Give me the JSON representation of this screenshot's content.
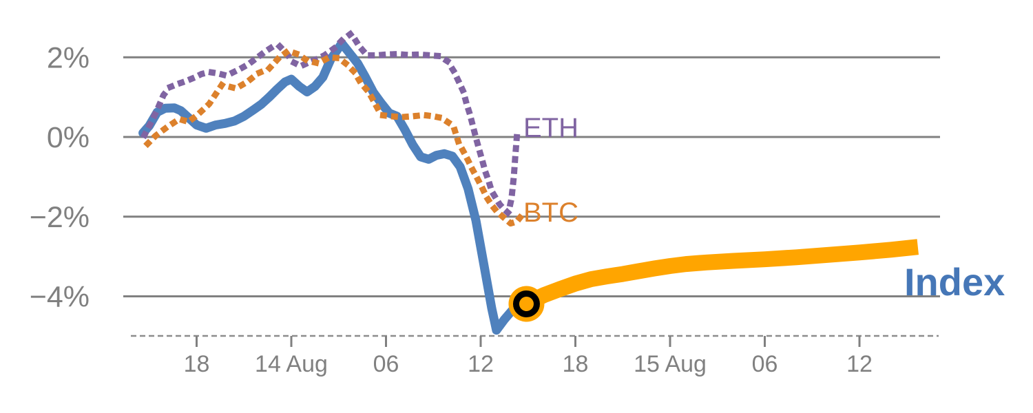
{
  "chart_data": {
    "type": "line",
    "title": "",
    "xlabel": "",
    "ylabel": "",
    "grid": "horizontal-only",
    "x_unit": "hours since Aug 13 00:00",
    "y_unit": "percent",
    "ylim": [
      -5.2,
      2.8
    ],
    "xlim": [
      14.2,
      65.2
    ],
    "y_axis": {
      "ticks": [
        {
          "value": 2,
          "label": "2%"
        },
        {
          "value": 0,
          "label": "0%"
        },
        {
          "value": -2,
          "label": "−2%"
        },
        {
          "value": -4,
          "label": "−4%"
        }
      ]
    },
    "x_axis": {
      "ticks": [
        {
          "t": 18,
          "label": "18"
        },
        {
          "t": 24,
          "label": "14 Aug"
        },
        {
          "t": 30,
          "label": "06"
        },
        {
          "t": 36,
          "label": "12"
        },
        {
          "t": 42,
          "label": "18"
        },
        {
          "t": 48,
          "label": "15 Aug"
        },
        {
          "t": 54,
          "label": "06"
        },
        {
          "t": 60,
          "label": "12"
        }
      ]
    },
    "series_labels": {
      "index": "Index",
      "eth": "ETH",
      "btc": "BTC"
    },
    "colors": {
      "index": "#4F81BD",
      "index_label": "#4677B7",
      "eth": "#8064A2",
      "btc": "#DC812C",
      "forecast": "#FFA500",
      "marker_ring": "#000000",
      "grid": "#808080",
      "axis_text": "#808080"
    },
    "series": [
      {
        "key": "index",
        "name": "Index",
        "style": "solid",
        "color": "#4F81BD",
        "width": 13,
        "points": [
          [
            14.6,
            0.1
          ],
          [
            15.0,
            0.28
          ],
          [
            15.5,
            0.62
          ],
          [
            16.0,
            0.72
          ],
          [
            16.6,
            0.73
          ],
          [
            17.0,
            0.66
          ],
          [
            17.5,
            0.48
          ],
          [
            18.0,
            0.3
          ],
          [
            18.6,
            0.22
          ],
          [
            19.2,
            0.3
          ],
          [
            19.8,
            0.34
          ],
          [
            20.4,
            0.4
          ],
          [
            21.0,
            0.52
          ],
          [
            21.6,
            0.68
          ],
          [
            22.1,
            0.82
          ],
          [
            22.6,
            1.0
          ],
          [
            23.1,
            1.2
          ],
          [
            23.6,
            1.38
          ],
          [
            24.0,
            1.45
          ],
          [
            24.5,
            1.27
          ],
          [
            25.0,
            1.13
          ],
          [
            25.5,
            1.27
          ],
          [
            26.0,
            1.5
          ],
          [
            26.5,
            1.95
          ],
          [
            27.2,
            2.35
          ],
          [
            27.7,
            2.1
          ],
          [
            28.2,
            1.85
          ],
          [
            28.7,
            1.5
          ],
          [
            29.2,
            1.12
          ],
          [
            29.7,
            0.85
          ],
          [
            30.2,
            0.6
          ],
          [
            30.7,
            0.52
          ],
          [
            31.2,
            0.18
          ],
          [
            31.7,
            -0.2
          ],
          [
            32.2,
            -0.5
          ],
          [
            32.7,
            -0.56
          ],
          [
            33.2,
            -0.46
          ],
          [
            33.7,
            -0.42
          ],
          [
            34.2,
            -0.48
          ],
          [
            34.7,
            -0.75
          ],
          [
            35.2,
            -1.3
          ],
          [
            35.7,
            -2.1
          ],
          [
            36.2,
            -3.2
          ],
          [
            36.7,
            -4.3
          ],
          [
            37.0,
            -4.85
          ],
          [
            37.5,
            -4.58
          ],
          [
            38.0,
            -4.35
          ],
          [
            38.7,
            -4.2
          ]
        ]
      },
      {
        "key": "forecast",
        "name": "Index forecast",
        "style": "solid",
        "color": "#FFA500",
        "width": 23,
        "points": [
          [
            38.7,
            -4.21
          ],
          [
            40.0,
            -3.97
          ],
          [
            41.0,
            -3.82
          ],
          [
            42.0,
            -3.68
          ],
          [
            43.0,
            -3.57
          ],
          [
            44.0,
            -3.5
          ],
          [
            45.0,
            -3.44
          ],
          [
            46.0,
            -3.37
          ],
          [
            47.0,
            -3.3
          ],
          [
            48.0,
            -3.24
          ],
          [
            49.0,
            -3.19
          ],
          [
            50.3,
            -3.15
          ],
          [
            52.0,
            -3.11
          ],
          [
            54.0,
            -3.07
          ],
          [
            56.0,
            -3.02
          ],
          [
            58.0,
            -2.96
          ],
          [
            60.0,
            -2.9
          ],
          [
            62.0,
            -2.83
          ],
          [
            63.7,
            -2.76
          ]
        ]
      },
      {
        "key": "eth",
        "name": "ETH",
        "style": "dotted",
        "color": "#8064A2",
        "width": 9,
        "points": [
          [
            14.7,
            0.05
          ],
          [
            15.1,
            0.35
          ],
          [
            15.5,
            0.68
          ],
          [
            15.9,
            1.05
          ],
          [
            16.3,
            1.25
          ],
          [
            16.8,
            1.33
          ],
          [
            17.3,
            1.4
          ],
          [
            17.8,
            1.48
          ],
          [
            18.3,
            1.58
          ],
          [
            18.8,
            1.63
          ],
          [
            19.3,
            1.6
          ],
          [
            19.8,
            1.55
          ],
          [
            20.3,
            1.62
          ],
          [
            20.8,
            1.72
          ],
          [
            21.3,
            1.83
          ],
          [
            21.8,
            1.98
          ],
          [
            22.3,
            2.13
          ],
          [
            22.8,
            2.26
          ],
          [
            23.2,
            2.3
          ],
          [
            23.7,
            2.1
          ],
          [
            24.1,
            1.88
          ],
          [
            24.6,
            1.78
          ],
          [
            25.1,
            1.87
          ],
          [
            25.6,
            1.95
          ],
          [
            26.1,
            2.05
          ],
          [
            26.7,
            2.22
          ],
          [
            27.2,
            2.42
          ],
          [
            27.8,
            2.6
          ],
          [
            28.3,
            2.28
          ],
          [
            28.8,
            2.05
          ],
          [
            29.4,
            2.05
          ],
          [
            30.0,
            2.07
          ],
          [
            30.7,
            2.08
          ],
          [
            31.4,
            2.06
          ],
          [
            32.1,
            2.07
          ],
          [
            32.8,
            2.05
          ],
          [
            33.4,
            2.03
          ],
          [
            33.9,
            1.9
          ],
          [
            34.3,
            1.65
          ],
          [
            34.6,
            1.4
          ],
          [
            34.9,
            1.14
          ],
          [
            35.1,
            0.84
          ],
          [
            35.3,
            0.59
          ],
          [
            35.5,
            0.29
          ],
          [
            35.7,
            -0.02
          ],
          [
            35.9,
            -0.31
          ],
          [
            36.1,
            -0.59
          ],
          [
            36.3,
            -0.88
          ],
          [
            36.5,
            -1.1
          ],
          [
            36.7,
            -1.36
          ],
          [
            36.95,
            -1.53
          ],
          [
            37.2,
            -1.69
          ],
          [
            37.45,
            -1.8
          ],
          [
            37.75,
            -1.91
          ],
          [
            37.95,
            -1.55
          ],
          [
            38.1,
            -1.0
          ],
          [
            38.2,
            -0.45
          ],
          [
            38.3,
            0.05
          ]
        ]
      },
      {
        "key": "btc",
        "name": "BTC",
        "style": "dotted",
        "color": "#DC812C",
        "width": 9,
        "points": [
          [
            14.9,
            -0.17
          ],
          [
            15.4,
            0.03
          ],
          [
            16.1,
            0.24
          ],
          [
            16.9,
            0.45
          ],
          [
            17.5,
            0.38
          ],
          [
            18.1,
            0.57
          ],
          [
            18.8,
            0.83
          ],
          [
            19.6,
            1.31
          ],
          [
            20.5,
            1.22
          ],
          [
            21.2,
            1.38
          ],
          [
            21.9,
            1.6
          ],
          [
            22.6,
            1.72
          ],
          [
            23.2,
            1.98
          ],
          [
            23.8,
            2.16
          ],
          [
            24.4,
            2.08
          ],
          [
            25.0,
            1.92
          ],
          [
            25.7,
            1.85
          ],
          [
            26.4,
            2.0
          ],
          [
            27.0,
            1.98
          ],
          [
            27.5,
            1.83
          ],
          [
            28.0,
            1.63
          ],
          [
            28.4,
            1.36
          ],
          [
            28.9,
            1.13
          ],
          [
            29.3,
            0.84
          ],
          [
            29.7,
            0.55
          ],
          [
            30.3,
            0.52
          ],
          [
            31.0,
            0.5
          ],
          [
            31.7,
            0.52
          ],
          [
            32.4,
            0.55
          ],
          [
            33.0,
            0.52
          ],
          [
            33.5,
            0.48
          ],
          [
            34.0,
            0.35
          ],
          [
            34.3,
            0.24
          ],
          [
            34.6,
            -0.14
          ],
          [
            34.9,
            -0.36
          ],
          [
            35.2,
            -0.59
          ],
          [
            35.5,
            -0.83
          ],
          [
            35.8,
            -1.05
          ],
          [
            36.1,
            -1.28
          ],
          [
            36.4,
            -1.53
          ],
          [
            36.7,
            -1.71
          ],
          [
            37.0,
            -1.86
          ],
          [
            37.4,
            -2.0
          ],
          [
            37.9,
            -2.17
          ],
          [
            38.3,
            -2.12
          ],
          [
            38.5,
            -2.02
          ]
        ]
      }
    ],
    "marker": {
      "t": 38.9,
      "value": -4.19,
      "fill": "#FFA500",
      "ring": "#000000"
    }
  }
}
